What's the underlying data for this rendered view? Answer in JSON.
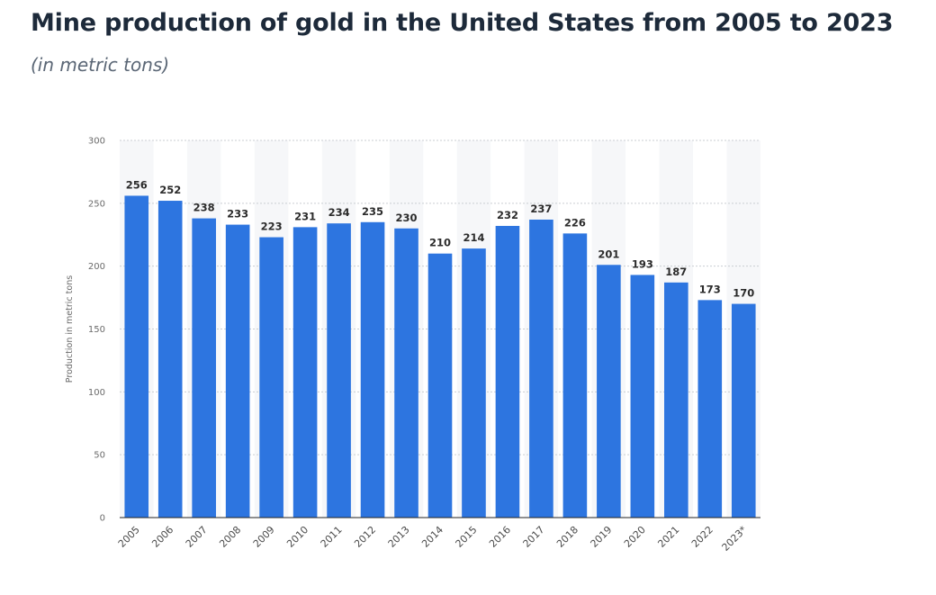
{
  "title": "Mine production of gold in the United States from 2005 to 2023",
  "subtitle": "(in metric tons)",
  "chart_data": {
    "type": "bar",
    "title": "Mine production of gold in the United States from 2005 to 2023",
    "subtitle": "(in metric tons)",
    "xlabel": "",
    "ylabel": "Production in metric tons",
    "categories": [
      "2005",
      "2006",
      "2007",
      "2008",
      "2009",
      "2010",
      "2011",
      "2012",
      "2013",
      "2014",
      "2015",
      "2016",
      "2017",
      "2018",
      "2019",
      "2020",
      "2021",
      "2022",
      "2023*"
    ],
    "values": [
      256,
      252,
      238,
      233,
      223,
      231,
      234,
      235,
      230,
      210,
      214,
      232,
      237,
      226,
      201,
      193,
      187,
      173,
      170
    ],
    "ylim": [
      0,
      300
    ],
    "yticks": [
      0,
      50,
      100,
      150,
      200,
      250,
      300
    ],
    "grid": true,
    "bar_color": "#2d75e0",
    "data_labels": true
  }
}
